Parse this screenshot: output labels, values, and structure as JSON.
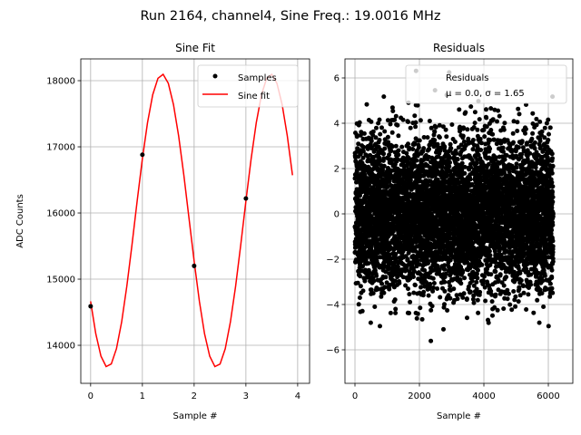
{
  "figure_title": "Run 2164, channel4, Sine Freq.: 19.0016 MHz",
  "chart_data": [
    {
      "type": "line",
      "title": "Sine Fit",
      "xlabel": "Sample #",
      "ylabel": "ADC Counts",
      "xlim": [
        -0.19,
        4.23
      ],
      "ylim": [
        13425,
        18329
      ],
      "xticks": [
        0,
        1,
        2,
        3,
        4
      ],
      "xtick_labels": [
        "0",
        "1",
        "2",
        "3",
        "4"
      ],
      "yticks": [
        14000,
        15000,
        16000,
        17000,
        18000
      ],
      "ytick_labels": [
        "14000",
        "15000",
        "16000",
        "17000",
        "18000"
      ],
      "grid": true,
      "legend": {
        "placement": "upper right",
        "entries": [
          "Samples",
          "Sine fit"
        ]
      },
      "series": [
        {
          "name": "Samples",
          "kind": "scatter",
          "color": "#000000",
          "x": [
            0,
            1,
            2,
            3
          ],
          "y": [
            14590,
            16880,
            15200,
            16220
          ]
        },
        {
          "name": "Sine fit",
          "kind": "line",
          "color": "#ff0000",
          "x": [
            0,
            0.1,
            0.2,
            0.3,
            0.4,
            0.5,
            0.6,
            0.7,
            0.8,
            0.9,
            1.0,
            1.1,
            1.2,
            1.3,
            1.4,
            1.5,
            1.6,
            1.7,
            1.8,
            1.9,
            2.0,
            2.1,
            2.2,
            2.3,
            2.4,
            2.5,
            2.6,
            2.7,
            2.8,
            2.9,
            3.0,
            3.1,
            3.2,
            3.3,
            3.4,
            3.5,
            3.6,
            3.7,
            3.8,
            3.9
          ],
          "y": [
            14665,
            14175,
            13836,
            13679,
            13718,
            13949,
            14352,
            14893,
            15520,
            16182,
            16815,
            17365,
            17786,
            18036,
            18096,
            17960,
            17639,
            17163,
            16574,
            15920,
            15267,
            14669,
            14175,
            13836,
            13679,
            13717,
            13947,
            14352,
            14890,
            15520,
            16182,
            16815,
            17365,
            17784,
            18036,
            18096,
            17958,
            17639,
            17163,
            16570
          ]
        }
      ]
    },
    {
      "type": "scatter",
      "title": "Residuals",
      "xlabel": "Sample #",
      "ylabel": "",
      "xlim": [
        -310,
        6760
      ],
      "ylim": [
        -7.48,
        6.84
      ],
      "xticks": [
        0,
        2000,
        4000,
        6000
      ],
      "xtick_labels": [
        "0",
        "2000",
        "4000",
        "6000"
      ],
      "yticks": [
        -6,
        -4,
        -2,
        0,
        2,
        4,
        6
      ],
      "ytick_labels": [
        "−6",
        "−4",
        "−2",
        "0",
        "2",
        "4",
        "6"
      ],
      "grid": true,
      "legend": {
        "placement": "upper right",
        "entries": [
          "Residuals",
          "μ = 0.0, σ = 1.65"
        ]
      },
      "series": [
        {
          "name": "Residuals",
          "color": "#000000",
          "x_range": [
            0,
            6150
          ],
          "mean": 0.0,
          "sigma": 1.65
        }
      ]
    }
  ]
}
